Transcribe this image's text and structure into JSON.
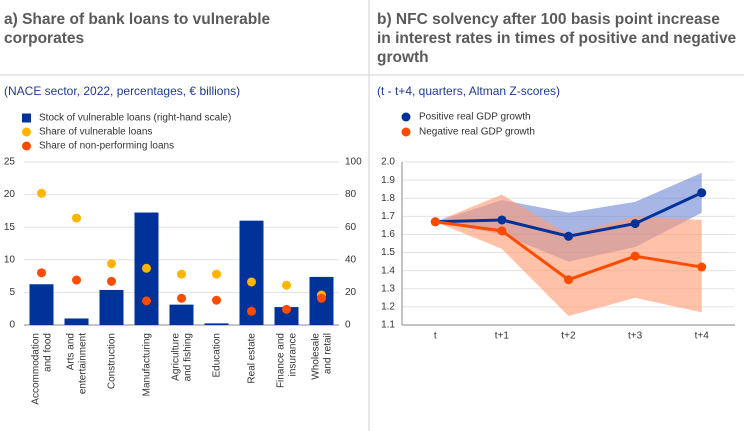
{
  "chart_data": [
    {
      "type": "combo",
      "title": "a) Share of bank loans to vulnerable corporates",
      "subtitle": "(NACE sector, 2022, percentages, € billions)",
      "categories": [
        "Accommodation and food",
        "Arts and entertainment",
        "Construction",
        "Manufacturing",
        "Agriculture and fishing",
        "Education",
        "Real estate",
        "Finance and insurance",
        "Wholesale and retail"
      ],
      "series": [
        {
          "name": "Stock of vulnerable loans (right-hand scale)",
          "type": "bar",
          "axis": "y2",
          "color": "#003299",
          "values": [
            25,
            4,
            21.5,
            69,
            12.5,
            1,
            64,
            11,
            29.5
          ]
        },
        {
          "name": "Share of vulnerable loans",
          "type": "dot",
          "color": "#ffb400",
          "values": [
            20.2,
            16.4,
            9.4,
            8.7,
            7.8,
            7.8,
            6.6,
            6.1,
            4.6
          ]
        },
        {
          "name": "Share of non-performing loans",
          "type": "dot",
          "color": "#ff4b00",
          "values": [
            8.0,
            6.9,
            6.7,
            3.7,
            4.1,
            3.8,
            2.1,
            2.4,
            4.1
          ]
        }
      ],
      "ylim": [
        0,
        25
      ],
      "yticks": [
        0,
        5,
        10,
        15,
        20,
        25
      ],
      "y2lim": [
        0,
        100
      ],
      "y2ticks": [
        0,
        20,
        40,
        60,
        80,
        100
      ],
      "grid": true
    },
    {
      "type": "line",
      "title": "b) NFC solvency after 100 basis point increase in interest rates in times of positive and negative growth",
      "subtitle": "(t - t+4, quarters, Altman Z-scores)",
      "categories": [
        "t",
        "t+1",
        "t+2",
        "t+3",
        "t+4"
      ],
      "series": [
        {
          "name": "Positive real GDP growth",
          "color": "#003299",
          "band_color": "#6d86d4",
          "values": [
            1.67,
            1.68,
            1.59,
            1.66,
            1.83
          ],
          "lower": [
            1.67,
            1.6,
            1.45,
            1.53,
            1.72
          ],
          "upper": [
            1.67,
            1.79,
            1.72,
            1.78,
            1.94
          ]
        },
        {
          "name": "Negative real GDP growth",
          "color": "#ff4b00",
          "band_color": "#ff9a70",
          "values": [
            1.67,
            1.62,
            1.35,
            1.48,
            1.42
          ],
          "lower": [
            1.67,
            1.52,
            1.15,
            1.25,
            1.17
          ],
          "upper": [
            1.67,
            1.82,
            1.6,
            1.7,
            1.68
          ]
        }
      ],
      "ylim": [
        1.1,
        2.0
      ],
      "yticks": [
        1.1,
        1.2,
        1.3,
        1.4,
        1.5,
        1.6,
        1.7,
        1.8,
        1.9,
        {
          "value": 2,
          "label": "2.0"
        }
      ],
      "grid": true
    }
  ]
}
